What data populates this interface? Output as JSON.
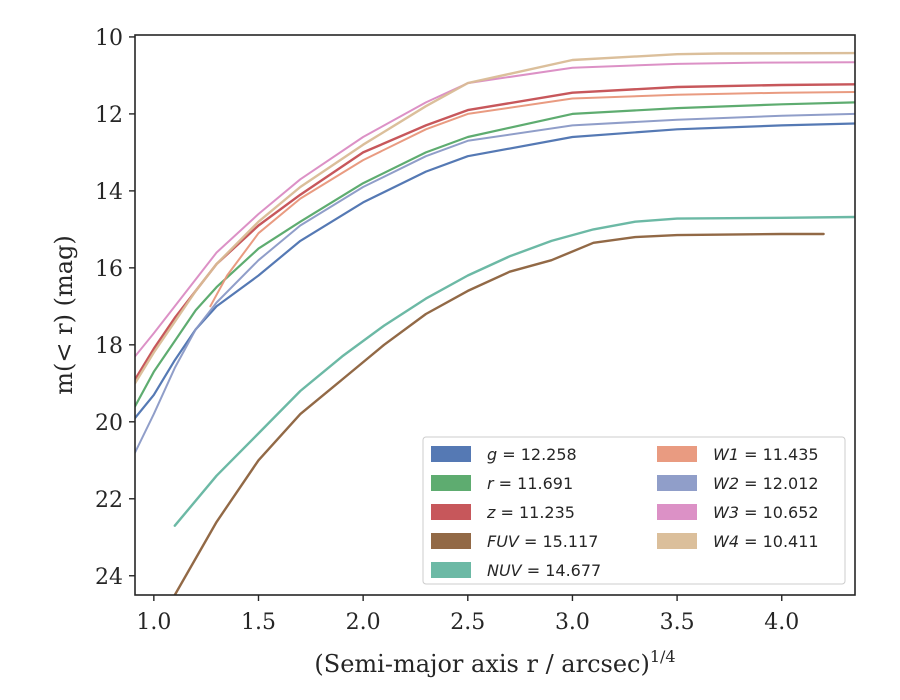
{
  "chart_data": {
    "type": "line",
    "xlabel": "(Semi-major axis r / arcsec)",
    "xlabel_italic_symbol": "r",
    "xlabel_superscript": "1/4",
    "ylabel": "m(< r) (mag)",
    "xlim": [
      0.91,
      4.35
    ],
    "ylim": [
      24.5,
      9.95
    ],
    "y_inverted": true,
    "xticks": [
      1.0,
      1.5,
      2.0,
      2.5,
      3.0,
      3.5,
      4.0
    ],
    "xtick_labels": [
      "1.0",
      "1.5",
      "2.0",
      "2.5",
      "3.0",
      "3.5",
      "4.0"
    ],
    "yticks": [
      10,
      12,
      14,
      16,
      18,
      20,
      22,
      24
    ],
    "ytick_labels": [
      "10",
      "12",
      "14",
      "16",
      "18",
      "20",
      "22",
      "24"
    ],
    "grid": false,
    "legend_position": "bottom-right",
    "legend_columns": 2,
    "series": [
      {
        "name": "g = 12.258",
        "label_var": "g",
        "label_val": "12.258",
        "color": "#4C72B0",
        "width": 2.2,
        "x": [
          0.91,
          1.0,
          1.1,
          1.2,
          1.3,
          1.5,
          1.7,
          2.0,
          2.3,
          2.5,
          3.0,
          3.5,
          4.0,
          4.35
        ],
        "y": [
          19.9,
          19.3,
          18.4,
          17.6,
          17.0,
          16.2,
          15.3,
          14.3,
          13.5,
          13.1,
          12.6,
          12.4,
          12.3,
          12.25
        ]
      },
      {
        "name": "r = 11.691",
        "label_var": "r",
        "label_val": "11.691",
        "color": "#55A868",
        "width": 2.2,
        "x": [
          0.91,
          1.0,
          1.1,
          1.2,
          1.3,
          1.5,
          1.7,
          2.0,
          2.3,
          2.5,
          3.0,
          3.5,
          4.0,
          4.35
        ],
        "y": [
          19.6,
          18.7,
          17.9,
          17.1,
          16.5,
          15.5,
          14.8,
          13.8,
          13.0,
          12.6,
          12.0,
          11.85,
          11.75,
          11.7
        ]
      },
      {
        "name": "z = 11.235",
        "label_var": "z",
        "label_val": "11.235",
        "color": "#C44E52",
        "width": 2.4,
        "x": [
          0.91,
          1.0,
          1.1,
          1.2,
          1.3,
          1.5,
          1.7,
          2.0,
          2.3,
          2.5,
          3.0,
          3.5,
          4.0,
          4.35
        ],
        "y": [
          18.9,
          18.1,
          17.3,
          16.6,
          15.9,
          14.9,
          14.1,
          13.0,
          12.3,
          11.9,
          11.45,
          11.3,
          11.25,
          11.23
        ]
      },
      {
        "name": "FUV = 15.117",
        "label_var": "FUV",
        "label_val": "15.117",
        "color": "#8C613C",
        "width": 2.4,
        "x": [
          1.1,
          1.3,
          1.5,
          1.7,
          1.9,
          2.1,
          2.3,
          2.5,
          2.7,
          2.9,
          3.1,
          3.3,
          3.5,
          4.0,
          4.2
        ],
        "y": [
          24.5,
          22.6,
          21.0,
          19.8,
          18.9,
          18.0,
          17.2,
          16.6,
          16.1,
          15.8,
          15.35,
          15.2,
          15.15,
          15.12,
          15.12
        ]
      },
      {
        "name": "NUV = 14.677",
        "label_var": "NUV",
        "label_val": "14.677",
        "color": "#64B5A0",
        "width": 2.4,
        "x": [
          1.1,
          1.3,
          1.5,
          1.7,
          1.9,
          2.1,
          2.3,
          2.5,
          2.7,
          2.9,
          3.1,
          3.3,
          3.5,
          4.0,
          4.35
        ],
        "y": [
          22.7,
          21.4,
          20.3,
          19.2,
          18.3,
          17.5,
          16.8,
          16.2,
          15.7,
          15.3,
          15.0,
          14.8,
          14.72,
          14.7,
          14.68
        ]
      },
      {
        "name": "W1 = 11.435",
        "label_var": "W1",
        "label_val": "11.435",
        "color": "#E8967A",
        "width": 2.0,
        "x": [
          1.27,
          1.35,
          1.5,
          1.7,
          2.0,
          2.3,
          2.5,
          3.0,
          3.5,
          4.0,
          4.35
        ],
        "y": [
          17.0,
          16.2,
          15.1,
          14.2,
          13.2,
          12.4,
          12.0,
          11.6,
          11.5,
          11.45,
          11.43
        ]
      },
      {
        "name": "W2 = 12.012",
        "label_var": "W2",
        "label_val": "12.012",
        "color": "#8A99C6",
        "width": 2.0,
        "x": [
          0.91,
          1.0,
          1.1,
          1.2,
          1.3,
          1.5,
          1.7,
          2.0,
          2.3,
          2.5,
          3.0,
          3.5,
          4.0,
          4.35
        ],
        "y": [
          20.8,
          19.8,
          18.6,
          17.6,
          16.9,
          15.8,
          14.9,
          13.9,
          13.1,
          12.7,
          12.3,
          12.15,
          12.05,
          12.0
        ]
      },
      {
        "name": "W3 = 10.652",
        "label_var": "W3",
        "label_val": "10.652",
        "color": "#DA8BC3",
        "width": 2.0,
        "x": [
          0.91,
          1.0,
          1.1,
          1.2,
          1.3,
          1.5,
          1.7,
          2.0,
          2.3,
          2.5,
          3.0,
          3.5,
          3.85,
          4.35
        ],
        "y": [
          18.3,
          17.7,
          17.0,
          16.3,
          15.6,
          14.6,
          13.7,
          12.6,
          11.7,
          11.2,
          10.8,
          10.7,
          10.67,
          10.66
        ]
      },
      {
        "name": "W4 = 10.411",
        "label_var": "W4",
        "label_val": "10.411",
        "color": "#D9BC96",
        "width": 2.4,
        "x": [
          0.91,
          1.0,
          1.1,
          1.2,
          1.3,
          1.5,
          1.7,
          2.0,
          2.3,
          2.5,
          3.0,
          3.5,
          3.7,
          4.35
        ],
        "y": [
          19.0,
          18.2,
          17.4,
          16.6,
          15.9,
          14.8,
          13.9,
          12.8,
          11.8,
          11.2,
          10.6,
          10.45,
          10.43,
          10.42
        ]
      }
    ]
  }
}
